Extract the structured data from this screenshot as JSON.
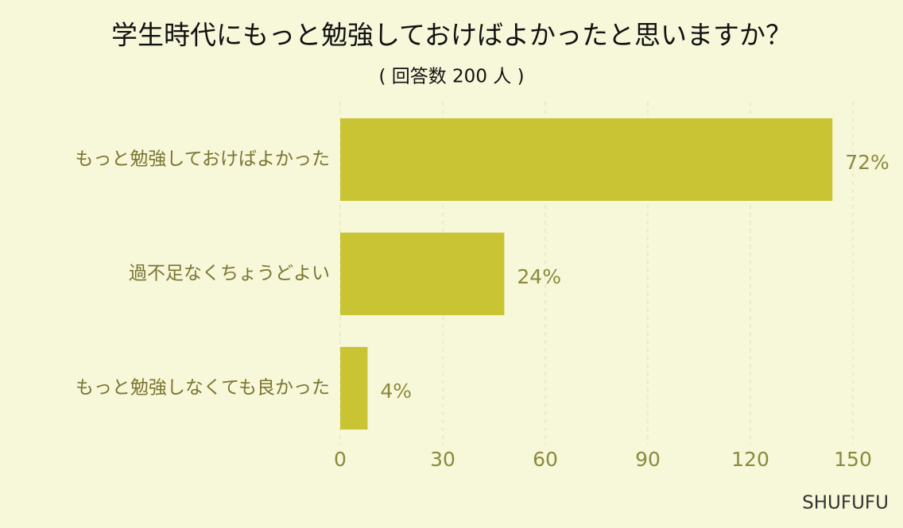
{
  "chart_data": {
    "type": "bar",
    "orientation": "horizontal",
    "title": "学生時代にもっと勉強しておけばよかったと思いますか？",
    "subtitle": "( 回答数 200 人 )",
    "categories": [
      "もっと勉強しておけばよかった",
      "過不足なくちょうどよい",
      "もっと勉強しなくても良かった"
    ],
    "values": [
      144,
      48,
      8
    ],
    "value_labels": [
      "72%",
      "24%",
      "4%"
    ],
    "color": "#c9c434",
    "xlim": [
      0,
      150
    ],
    "xticks": [
      0,
      30,
      60,
      90,
      120,
      150
    ],
    "grid": true,
    "source": "SHUFUFU"
  }
}
